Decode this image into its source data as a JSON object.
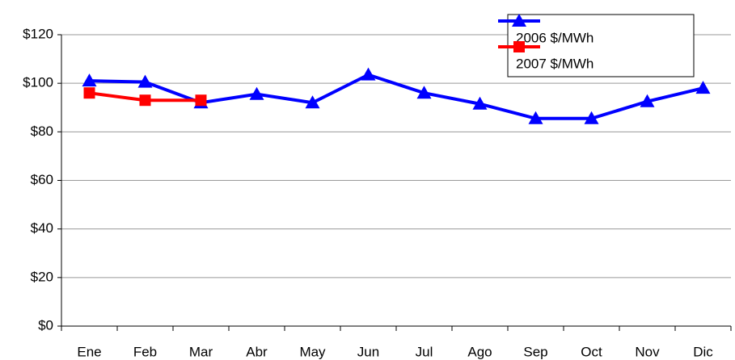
{
  "chart_data": {
    "type": "line",
    "categories": [
      "Ene",
      "Feb",
      "Mar",
      "Abr",
      "May",
      "Jun",
      "Jul",
      "Ago",
      "Sep",
      "Oct",
      "Nov",
      "Dic"
    ],
    "series": [
      {
        "name": "2006 $/MWh",
        "color": "#0000ff",
        "marker": "triangle",
        "values": [
          101,
          100.5,
          92,
          95.5,
          92,
          103.5,
          96,
          91.5,
          85.5,
          85.5,
          92.5,
          98
        ]
      },
      {
        "name": "2007 $/MWh",
        "color": "#ff0000",
        "marker": "square",
        "values": [
          96,
          93,
          93,
          null,
          null,
          null,
          null,
          null,
          null,
          null,
          null,
          null
        ]
      }
    ],
    "ylim": [
      0,
      120
    ],
    "yticks": [
      {
        "value": 0,
        "label": "$0"
      },
      {
        "value": 20,
        "label": "$20"
      },
      {
        "value": 40,
        "label": "$40"
      },
      {
        "value": 60,
        "label": "$60"
      },
      {
        "value": 80,
        "label": "$80"
      },
      {
        "value": 100,
        "label": "$100"
      },
      {
        "value": 120,
        "label": "$120"
      }
    ],
    "grid": true,
    "legend": "upper right"
  }
}
